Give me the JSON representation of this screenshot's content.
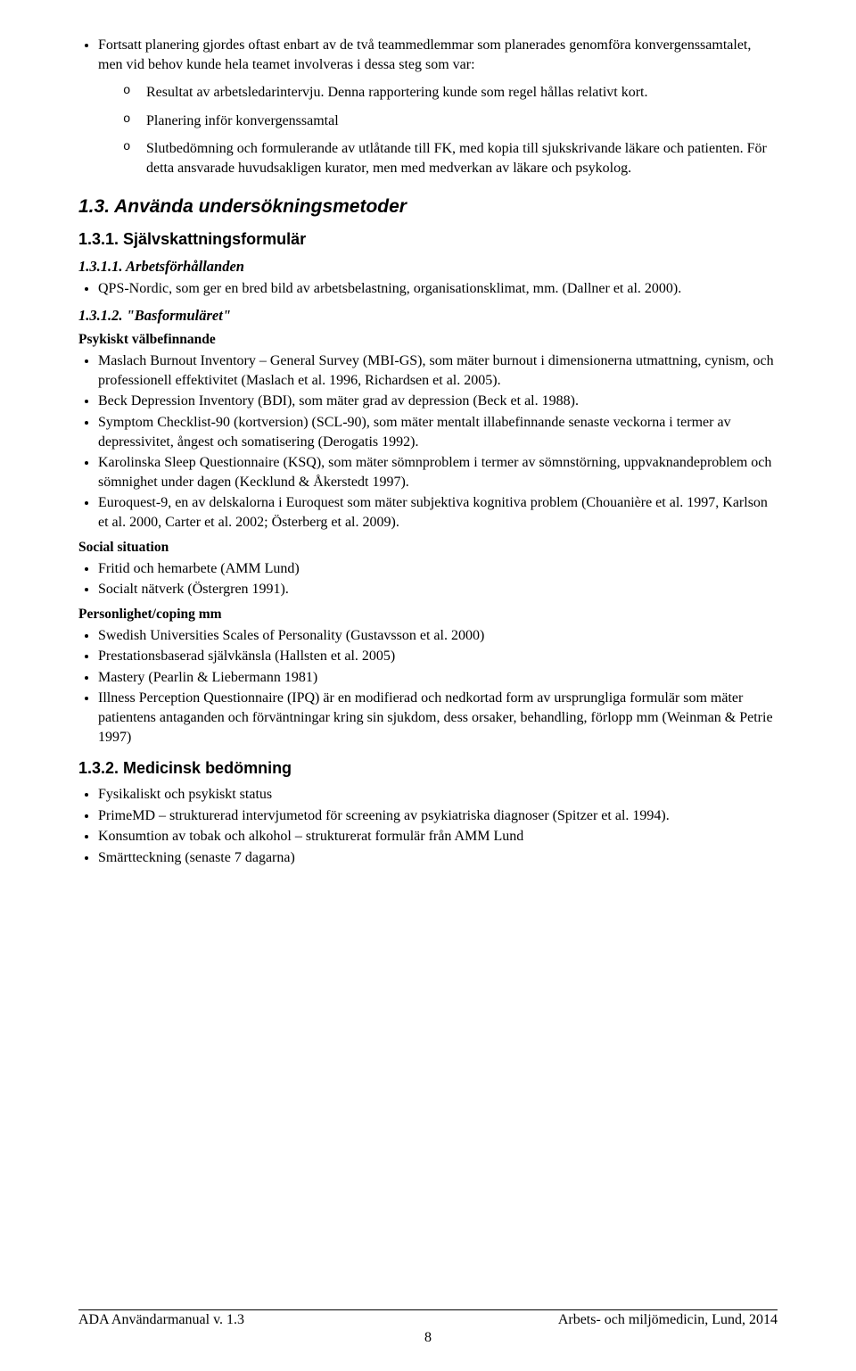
{
  "intro": {
    "bullet": "Fortsatt planering gjordes oftast enbart av de två teammedlemmar som planerades genomföra konvergenssamtalet, men vid behov kunde hela teamet involveras i dessa steg som var:",
    "sub": [
      "Resultat av arbetsledarintervju. Denna rapportering kunde som regel hållas relativt kort.",
      "Planering inför konvergenssamtal",
      "Slutbedömning och formulerande av utlåtande till FK, med kopia till sjukskrivande läkare och patienten. För detta ansvarade huvudsakligen kurator, men med medverkan av läkare och psykolog."
    ]
  },
  "s13": {
    "title": "1.3. Använda undersökningsmetoder",
    "s131": {
      "title": "1.3.1. Självskattningsformulär",
      "p1": {
        "title": "1.3.1.1. Arbetsförhållanden",
        "items": [
          "QPS-Nordic, som ger en bred bild av arbetsbelastning, organisationsklimat, mm. (Dallner et al. 2000)."
        ]
      },
      "p2": {
        "title": "1.3.1.2. \"Basformuläret\"",
        "groups": [
          {
            "heading": "Psykiskt välbefinnande",
            "items": [
              "Maslach Burnout Inventory – General Survey (MBI-GS), som mäter burnout i dimensionerna utmattning, cynism, och professionell effektivitet (Maslach et al. 1996, Richardsen et al. 2005).",
              "Beck Depression Inventory (BDI), som mäter grad av depression (Beck et al. 1988).",
              "Symptom Checklist-90 (kortversion) (SCL-90), som mäter mentalt illabefinnande senaste veckorna i termer av depressivitet, ångest och somatisering (Derogatis 1992).",
              "Karolinska Sleep Questionnaire (KSQ), som mäter sömnproblem i termer av sömnstörning, uppvaknandeproblem och sömnighet under dagen (Kecklund & Åkerstedt 1997).",
              "Euroquest-9, en av delskalorna i Euroquest som mäter subjektiva kognitiva problem (Chouanière et al. 1997, Karlson et al. 2000, Carter et al. 2002; Österberg et al. 2009)."
            ]
          },
          {
            "heading": "Social situation",
            "items": [
              "Fritid och hemarbete (AMM Lund)",
              "Socialt nätverk (Östergren 1991)."
            ]
          },
          {
            "heading": "Personlighet/coping mm",
            "items": [
              "Swedish Universities Scales of Personality (Gustavsson et al. 2000)",
              "Prestationsbaserad självkänsla (Hallsten et al. 2005)",
              "Mastery (Pearlin & Liebermann 1981)",
              "Illness Perception Questionnaire (IPQ) är en modifierad och nedkortad form av ursprungliga formulär som mäter patientens antaganden och förväntningar kring sin sjukdom, dess orsaker, behandling, förlopp mm (Weinman & Petrie 1997)"
            ]
          }
        ]
      }
    },
    "s132": {
      "title": "1.3.2. Medicinsk bedömning",
      "items": [
        "Fysikaliskt och psykiskt status",
        "PrimeMD – strukturerad intervjumetod för screening av psykiatriska diagnoser (Spitzer et al. 1994).",
        "Konsumtion av tobak och alkohol – strukturerat formulär från AMM Lund",
        "Smärtteckning (senaste 7 dagarna)"
      ]
    }
  },
  "footer": {
    "left": "ADA Användarmanual v. 1.3",
    "right": "Arbets- och miljömedicin, Lund, 2014",
    "page": "8"
  }
}
